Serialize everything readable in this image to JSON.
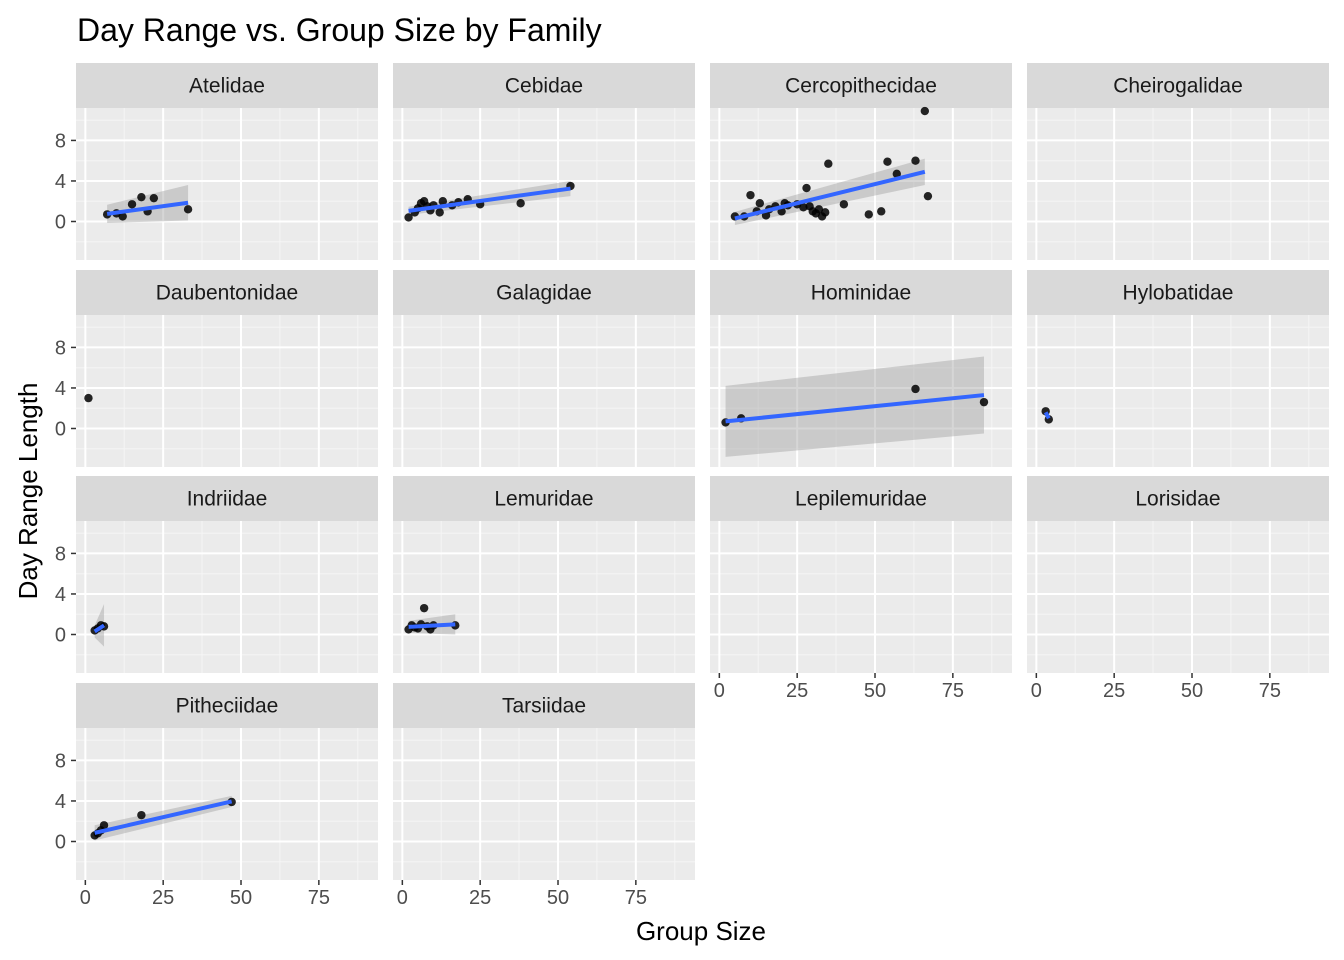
{
  "chart_data": {
    "type": "scatter",
    "title": "Day Range vs. Group Size by Family",
    "xlabel": "Group Size",
    "ylabel": "Day Range Length",
    "xlim": [
      -3,
      94
    ],
    "ylim": [
      -3.8,
      11.2
    ],
    "x_ticks": [
      0,
      25,
      50,
      75
    ],
    "y_ticks": [
      0,
      4,
      8
    ],
    "grid": true,
    "smoother": "linear fit with confidence band",
    "colors": {
      "panel_bg": "#ebebeb",
      "strip_bg": "#d9d9d9",
      "grid_major": "#ffffff",
      "grid_minor": "#f5f5f5",
      "points": "#000000",
      "fit_line": "#3366ff",
      "ci_band": "#999999"
    },
    "facets": [
      {
        "name": "Atelidae",
        "points": [
          [
            7,
            0.7
          ],
          [
            10,
            0.8
          ],
          [
            12,
            0.5
          ],
          [
            15,
            1.7
          ],
          [
            18,
            2.4
          ],
          [
            20,
            1.0
          ],
          [
            22,
            2.3
          ],
          [
            33,
            1.2
          ]
        ],
        "fit": {
          "x": [
            7,
            33
          ],
          "y": [
            0.75,
            1.85
          ],
          "ci_upper": [
            1.65,
            3.6
          ],
          "ci_lower": [
            -0.15,
            0.1
          ]
        }
      },
      {
        "name": "Cebidae",
        "points": [
          [
            2,
            0.4
          ],
          [
            4,
            0.9
          ],
          [
            5,
            1.3
          ],
          [
            6,
            1.8
          ],
          [
            7,
            2.0
          ],
          [
            8,
            1.5
          ],
          [
            9,
            1.1
          ],
          [
            10,
            1.6
          ],
          [
            12,
            0.9
          ],
          [
            13,
            2.0
          ],
          [
            16,
            1.6
          ],
          [
            18,
            1.9
          ],
          [
            21,
            2.2
          ],
          [
            25,
            1.7
          ],
          [
            38,
            1.8
          ],
          [
            54,
            3.5
          ]
        ],
        "fit": {
          "x": [
            2,
            54
          ],
          "y": [
            1.05,
            3.25
          ],
          "ci_upper": [
            1.45,
            4.0
          ],
          "ci_lower": [
            0.65,
            2.5
          ]
        }
      },
      {
        "name": "Cercopithecidae",
        "points": [
          [
            5,
            0.5
          ],
          [
            8,
            0.5
          ],
          [
            10,
            2.6
          ],
          [
            12,
            1.0
          ],
          [
            13,
            1.8
          ],
          [
            15,
            0.6
          ],
          [
            16,
            1.2
          ],
          [
            18,
            1.5
          ],
          [
            20,
            1.0
          ],
          [
            21,
            1.8
          ],
          [
            22,
            1.6
          ],
          [
            25,
            1.7
          ],
          [
            27,
            1.4
          ],
          [
            28,
            3.3
          ],
          [
            29,
            1.5
          ],
          [
            30,
            1.0
          ],
          [
            31,
            0.8
          ],
          [
            32,
            1.2
          ],
          [
            33,
            0.5
          ],
          [
            34,
            0.9
          ],
          [
            35,
            5.7
          ],
          [
            40,
            1.7
          ],
          [
            48,
            0.7
          ],
          [
            52,
            1.0
          ],
          [
            54,
            5.9
          ],
          [
            57,
            4.7
          ],
          [
            63,
            6.0
          ],
          [
            66,
            10.9
          ],
          [
            67,
            2.5
          ]
        ],
        "fit": {
          "x": [
            5,
            66
          ],
          "y": [
            0.3,
            4.9
          ],
          "ci_upper": [
            0.95,
            6.2
          ],
          "ci_lower": [
            -0.35,
            3.6
          ]
        }
      },
      {
        "name": "Cheirogalidae",
        "points": [],
        "fit": null
      },
      {
        "name": "Daubentonidae",
        "points": [
          [
            1,
            3.0
          ]
        ],
        "fit": null
      },
      {
        "name": "Galagidae",
        "points": [],
        "fit": null
      },
      {
        "name": "Hominidae",
        "points": [
          [
            2,
            0.6
          ],
          [
            7,
            1.0
          ],
          [
            63,
            3.9
          ],
          [
            85,
            2.6
          ]
        ],
        "fit": {
          "x": [
            2,
            85
          ],
          "y": [
            0.7,
            3.3
          ],
          "ci_upper": [
            4.2,
            7.1
          ],
          "ci_lower": [
            -2.8,
            -0.5
          ]
        }
      },
      {
        "name": "Hylobatidae",
        "points": [
          [
            3,
            1.7
          ],
          [
            4,
            0.9
          ]
        ],
        "fit": {
          "x": [
            3,
            4
          ],
          "y": [
            1.6,
            1.0
          ],
          "ci_upper": [
            1.7,
            1.1
          ],
          "ci_lower": [
            1.5,
            0.9
          ]
        }
      },
      {
        "name": "Indriidae",
        "points": [
          [
            3,
            0.4
          ],
          [
            4,
            0.6
          ],
          [
            5,
            0.9
          ],
          [
            6,
            0.8
          ]
        ],
        "fit": {
          "x": [
            3,
            6
          ],
          "y": [
            0.3,
            0.9
          ],
          "ci_upper": [
            0.9,
            3.0
          ],
          "ci_lower": [
            -0.3,
            -1.2
          ]
        }
      },
      {
        "name": "Lemuridae",
        "points": [
          [
            2,
            0.5
          ],
          [
            3,
            0.9
          ],
          [
            4,
            0.7
          ],
          [
            5,
            0.6
          ],
          [
            6,
            1.0
          ],
          [
            7,
            2.6
          ],
          [
            8,
            0.8
          ],
          [
            9,
            0.5
          ],
          [
            10,
            0.9
          ],
          [
            17,
            0.9
          ]
        ],
        "fit": {
          "x": [
            2,
            17
          ],
          "y": [
            0.75,
            1.0
          ],
          "ci_upper": [
            1.35,
            2.0
          ],
          "ci_lower": [
            0.15,
            0.0
          ]
        }
      },
      {
        "name": "Lepilemuridae",
        "points": [],
        "fit": null
      },
      {
        "name": "Lorisidae",
        "points": [],
        "fit": null
      },
      {
        "name": "Pitheciidae",
        "points": [
          [
            3,
            0.6
          ],
          [
            4,
            0.8
          ],
          [
            5,
            1.1
          ],
          [
            6,
            1.6
          ],
          [
            18,
            2.6
          ],
          [
            47,
            3.9
          ]
        ],
        "fit": {
          "x": [
            3,
            47
          ],
          "y": [
            0.85,
            3.95
          ],
          "ci_upper": [
            1.6,
            4.5
          ],
          "ci_lower": [
            0.1,
            3.4
          ]
        }
      },
      {
        "name": "Tarsiidae",
        "points": [],
        "fit": null
      }
    ]
  }
}
